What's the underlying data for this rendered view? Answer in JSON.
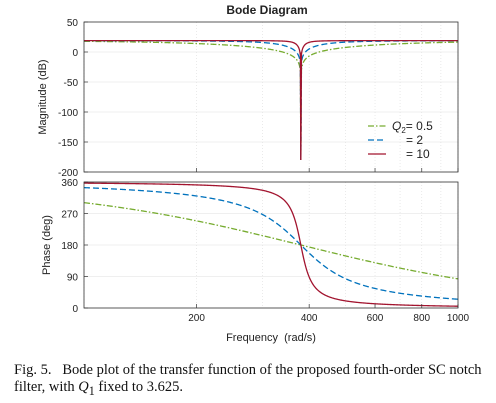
{
  "chart_data": [
    {
      "type": "line",
      "title": "Bode Diagram",
      "ylabel": "Magnitude (dB)",
      "xlabel": "",
      "x_scale": "log",
      "xlim": [
        100,
        1000
      ],
      "ylim": [
        -200,
        50
      ],
      "yticks": [
        50,
        0,
        -50,
        -100,
        -150,
        -200
      ],
      "grid": true,
      "legend": {
        "placement": "bottom-right",
        "entries": [
          {
            "prefix": "Q",
            "subscript": "2",
            "suffix": "= 0.5"
          },
          {
            "prefix": "",
            "subscript": "",
            "suffix": "= 2"
          },
          {
            "prefix": "",
            "subscript": "",
            "suffix": "= 10"
          }
        ]
      },
      "series": [
        {
          "Q2": 0.5,
          "color": "#77ac30",
          "dash": "dashdot"
        },
        {
          "Q2": 2,
          "color": "#0072bd",
          "dash": "dashed"
        },
        {
          "Q2": 10,
          "color": "#a2142f",
          "dash": "solid"
        }
      ],
      "notch_frequency": 380,
      "passband_gain_db": 19,
      "notch_depth_db": -180,
      "q1": 3.625
    },
    {
      "type": "line",
      "title": "",
      "ylabel": "Phase (deg)",
      "xlabel": "Frequency  (rad/s)",
      "x_scale": "log",
      "xlim": [
        100,
        1000
      ],
      "ylim": [
        0,
        360
      ],
      "yticks": [
        360,
        270,
        180,
        90,
        0
      ],
      "xticks": [
        200,
        400,
        600,
        800,
        1000
      ],
      "grid": true,
      "phase_range": [
        360,
        0
      ],
      "phase_at_notch": 180
    }
  ],
  "caption": {
    "label": "Fig. 5.",
    "text_before": "Bode plot of the transfer function of the proposed fourth-order SC notch filter, with ",
    "q_letter": "Q",
    "q_subscript": "1",
    "text_after": " fixed to 3.625."
  }
}
